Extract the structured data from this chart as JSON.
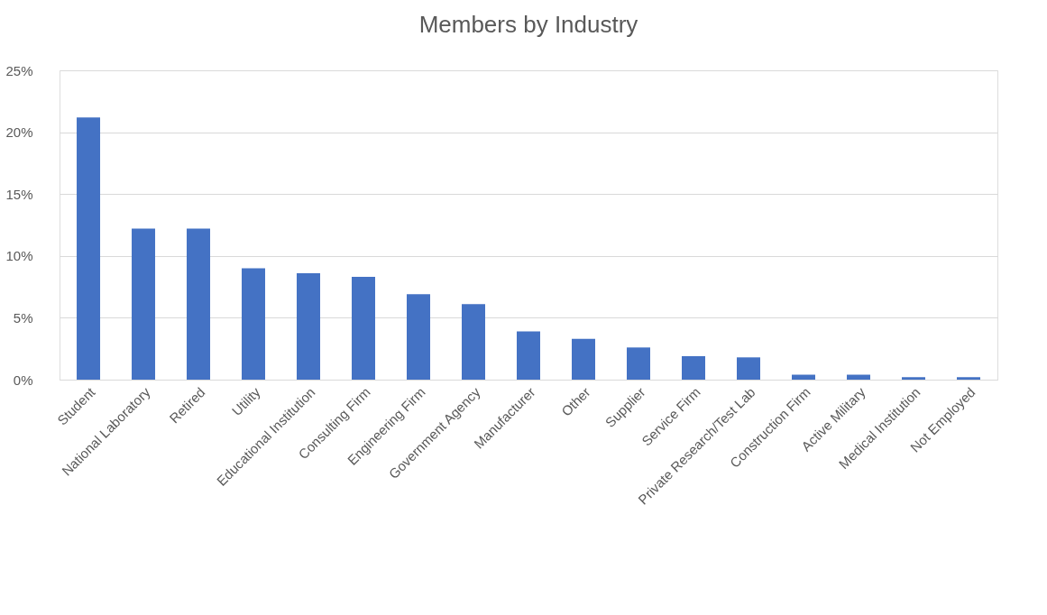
{
  "chart_data": {
    "type": "bar",
    "title": "Members by Industry",
    "categories": [
      "Student",
      "National Laboratory",
      "Retired",
      "Utility",
      "Educational Institution",
      "Consulting Firm",
      "Engineering Firm",
      "Government Agency",
      "Manufacturer",
      "Other",
      "Supplier",
      "Service Firm",
      "Private Research/Test Lab",
      "Construction Firm",
      "Active Military",
      "Medical Institution",
      "Not Employed"
    ],
    "values": [
      21.2,
      12.2,
      12.2,
      9.0,
      8.6,
      8.3,
      6.9,
      6.1,
      3.9,
      3.3,
      2.6,
      1.9,
      1.8,
      0.4,
      0.4,
      0.2,
      0.2
    ],
    "color": "#4472c4",
    "ylim": [
      0,
      25
    ],
    "yticks": [
      {
        "value": 0,
        "label": "0%"
      },
      {
        "value": 5,
        "label": "5%"
      },
      {
        "value": 10,
        "label": "10%"
      },
      {
        "value": 15,
        "label": "15%"
      },
      {
        "value": 20,
        "label": "20%"
      },
      {
        "value": 25,
        "label": "25%"
      }
    ],
    "grid": "y"
  }
}
